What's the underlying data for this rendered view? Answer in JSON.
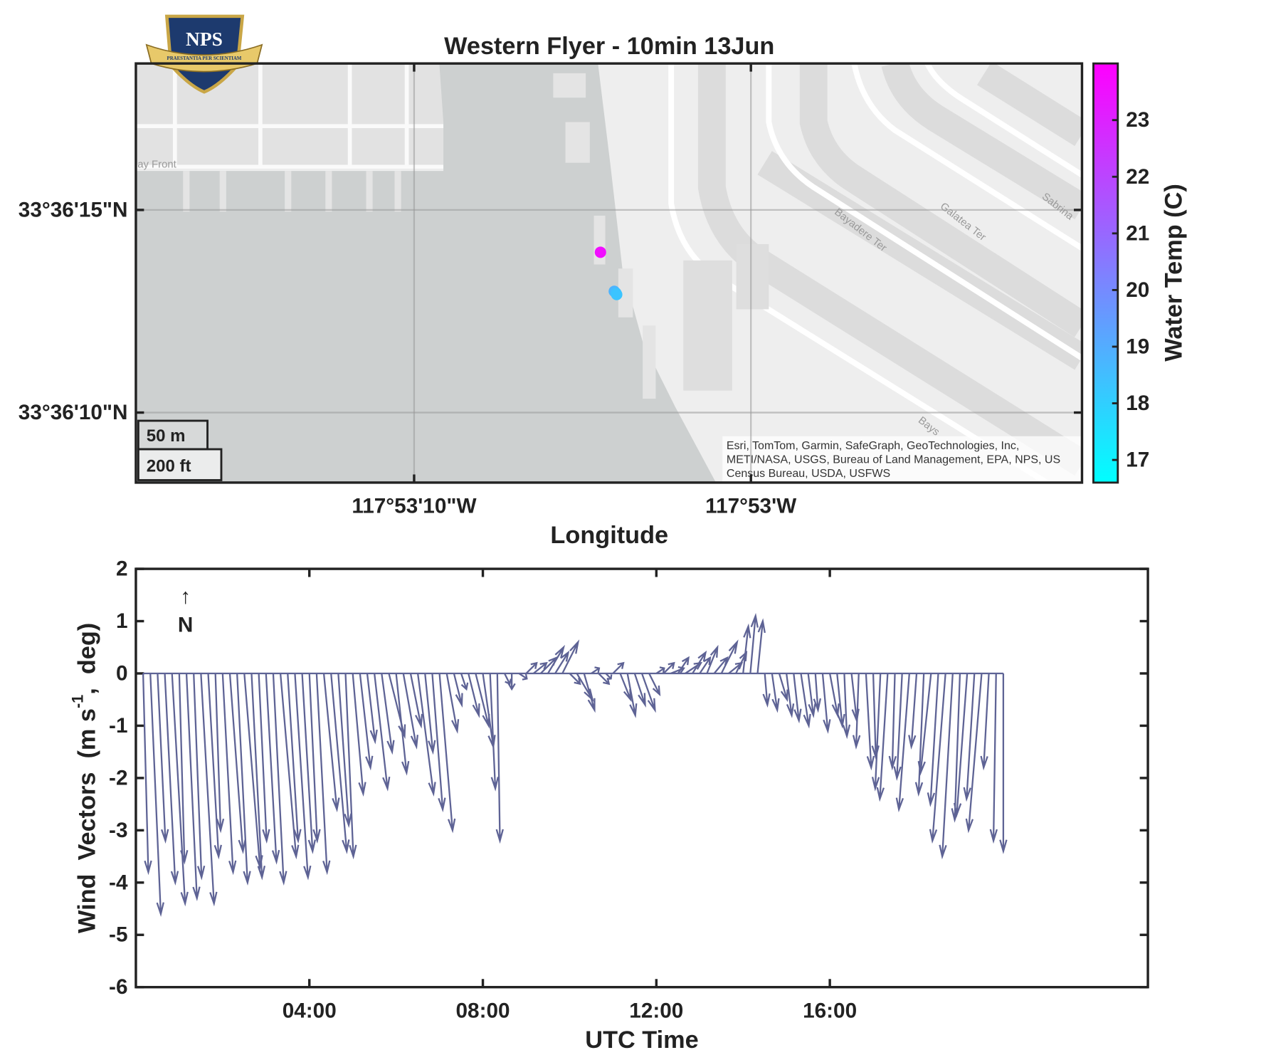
{
  "logo": {
    "title": "NPS",
    "motto": "PRAESTANTIA PER SCIENTIAM"
  },
  "chart_data": [
    {
      "type": "map",
      "title": "Western Flyer - 10min 13Jun",
      "xlabel": "Longitude",
      "xlim": [
        -117.888406,
        -117.880602
      ],
      "ylim": [
        33.602298,
        33.605171
      ],
      "xticks": [
        {
          "value": -117.886111,
          "label": "117°53'10\"W"
        },
        {
          "value": -117.883333,
          "label": "117°53'W"
        }
      ],
      "yticks": [
        {
          "value": 33.602778,
          "label": "33°36'10\"N"
        },
        {
          "value": 33.604167,
          "label": "33°36'15\"N"
        }
      ],
      "grid": true,
      "lon": [
        -117.884574,
        -117.88446,
        -117.884447,
        -117.88444
      ],
      "lat": [
        33.603877,
        33.603609,
        33.603598,
        33.603587
      ],
      "temp": [
        23.6,
        18.8,
        18.5,
        18.3
      ],
      "colormap": "cool",
      "clim": [
        16.6,
        24.0
      ],
      "cticks": [
        17,
        18,
        19,
        20,
        21,
        22,
        23
      ],
      "clabel": "Water Temp (C)",
      "scale_bar": [
        "50 m",
        "200 ft"
      ],
      "attribution": [
        "Esri, TomTom, Garmin, SafeGraph, GeoTechnologies, Inc,",
        "METI/NASA, USGS, Bureau of Land Management, EPA, NPS, US",
        "Census Bureau, USDA, USFWS"
      ],
      "place_labels": [
        "ay Front",
        "Bayadere Ter",
        "Galatea Ter",
        "Sabrina",
        "Bays"
      ]
    },
    {
      "type": "quiver",
      "xlabel": "UTC Time",
      "ylabel": [
        "Wind  Vectors  (m s",
        "-1",
        ",  deg)"
      ],
      "annotation": [
        "↑",
        "N"
      ],
      "xlim": [
        "00:00",
        "23:20"
      ],
      "xticks": [
        "04:00",
        "08:00",
        "12:00",
        "16:00"
      ],
      "ylim": [
        -6,
        2
      ],
      "yticks": [
        -6,
        -5,
        -4,
        -3,
        -2,
        -1,
        0,
        1,
        2
      ],
      "color": "#5e6395",
      "x": [
        "00:10",
        "00:20",
        "00:30",
        "00:40",
        "00:50",
        "01:00",
        "01:10",
        "01:20",
        "01:30",
        "01:40",
        "01:50",
        "02:00",
        "02:10",
        "02:20",
        "02:30",
        "02:40",
        "02:50",
        "03:00",
        "03:10",
        "03:20",
        "03:30",
        "03:40",
        "03:50",
        "04:00",
        "04:10",
        "04:20",
        "04:30",
        "04:40",
        "04:50",
        "05:00",
        "05:10",
        "05:20",
        "05:30",
        "05:40",
        "05:50",
        "06:00",
        "06:10",
        "06:20",
        "06:30",
        "06:40",
        "06:50",
        "07:00",
        "07:10",
        "07:20",
        "07:30",
        "07:40",
        "07:50",
        "08:00",
        "08:10",
        "08:20",
        "08:30",
        "08:40",
        "08:50",
        "09:00",
        "09:10",
        "09:20",
        "09:30",
        "09:40",
        "09:50",
        "10:00",
        "10:10",
        "10:20",
        "10:30",
        "10:40",
        "10:50",
        "11:00",
        "11:10",
        "11:20",
        "11:30",
        "11:40",
        "11:50",
        "12:00",
        "12:10",
        "12:20",
        "12:30",
        "12:40",
        "12:50",
        "13:00",
        "13:10",
        "13:20",
        "13:30",
        "13:40",
        "13:50",
        "14:00",
        "14:10",
        "14:20",
        "14:30",
        "14:40",
        "14:50",
        "15:00",
        "15:10",
        "15:20",
        "15:30",
        "15:40",
        "15:50",
        "16:00",
        "16:10",
        "16:20",
        "16:30",
        "16:40",
        "16:50",
        "17:00",
        "17:10",
        "17:20",
        "17:30",
        "17:40",
        "17:50",
        "18:00",
        "18:10",
        "18:20",
        "18:30",
        "18:40",
        "18:50",
        "19:00",
        "19:10",
        "19:20",
        "19:30",
        "19:40",
        "19:50",
        "20:00"
      ],
      "u": [
        0.1,
        0.2,
        0.15,
        0.2,
        0.25,
        0.1,
        0.2,
        0.15,
        0.25,
        0.2,
        0.1,
        0.2,
        0.25,
        0.2,
        0.3,
        0.2,
        0.15,
        0.2,
        0.2,
        0.3,
        0.2,
        0.25,
        0.2,
        0.15,
        0.2,
        0.25,
        0.3,
        0.2,
        0.15,
        0.2,
        0.2,
        0.15,
        0.25,
        0.2,
        0.3,
        0.2,
        0.25,
        0.2,
        0.3,
        0.15,
        0.2,
        0.25,
        0.2,
        0.15,
        0.1,
        0.2,
        0.25,
        0.2,
        0.1,
        0.05,
        0.1,
        0.0,
        0.15,
        0.2,
        0.25,
        0.3,
        0.3,
        0.25,
        0.3,
        0.2,
        0.3,
        0.2,
        0.15,
        0.2,
        0.1,
        0.2,
        0.2,
        0.15,
        0.2,
        0.25,
        0.2,
        0.15,
        0.2,
        0.25,
        0.2,
        0.3,
        0.25,
        0.2,
        0.2,
        0.25,
        0.3,
        0.25,
        0.2,
        0.1,
        0.1,
        0.1,
        0.05,
        0.1,
        0.15,
        0.1,
        0.1,
        0.15,
        0.1,
        0.05,
        0.1,
        0.15,
        0.1,
        0.05,
        0.1,
        -0.05,
        0.1,
        0.05,
        -0.1,
        -0.15,
        -0.05,
        -0.1,
        -0.2,
        -0.1,
        -0.1,
        -0.2,
        -0.15,
        -0.25,
        -0.2,
        -0.1,
        -0.2,
        -0.15,
        -0.25,
        -0.1,
        -0.05,
        0.0
      ],
      "v": [
        -3.8,
        -4.6,
        -3.2,
        -4.0,
        -4.4,
        -3.6,
        -4.3,
        -3.9,
        -4.4,
        -3.5,
        -3.0,
        -3.8,
        -3.4,
        -4.0,
        -3.7,
        -3.9,
        -3.2,
        -3.6,
        -4.0,
        -3.5,
        -3.2,
        -3.9,
        -3.4,
        -3.2,
        -3.8,
        -2.6,
        -3.4,
        -2.9,
        -3.5,
        -2.3,
        -1.8,
        -1.3,
        -2.2,
        -1.5,
        -1.2,
        -1.9,
        -1.4,
        -1.0,
        -2.3,
        -1.5,
        -2.6,
        -3.0,
        -1.1,
        -0.6,
        -0.3,
        -0.8,
        -1.0,
        -1.4,
        -2.2,
        -3.2,
        -0.2,
        -0.3,
        -0.1,
        0.2,
        0.2,
        0.3,
        0.5,
        0.4,
        0.6,
        -0.2,
        -0.5,
        -0.7,
        0.1,
        -0.2,
        -0.1,
        0.2,
        -0.5,
        -0.8,
        -0.6,
        -0.7,
        -0.4,
        0.1,
        0.2,
        0.1,
        0.3,
        0.2,
        0.4,
        0.3,
        0.5,
        0.3,
        0.6,
        0.2,
        0.4,
        0.9,
        1.1,
        1.0,
        -0.6,
        -0.7,
        -0.5,
        -0.8,
        -0.9,
        -1.0,
        -0.8,
        -0.7,
        -1.1,
        -0.8,
        -1.0,
        -1.2,
        -0.9,
        -1.4,
        -1.8,
        -1.6,
        -2.2,
        -2.4,
        -1.8,
        -2.0,
        -2.6,
        -1.4,
        -2.3,
        -1.9,
        -2.5,
        -3.2,
        -3.5,
        -2.8,
        -2.7,
        -2.4,
        -3.0,
        -1.8,
        -3.2,
        -3.4
      ]
    }
  ]
}
